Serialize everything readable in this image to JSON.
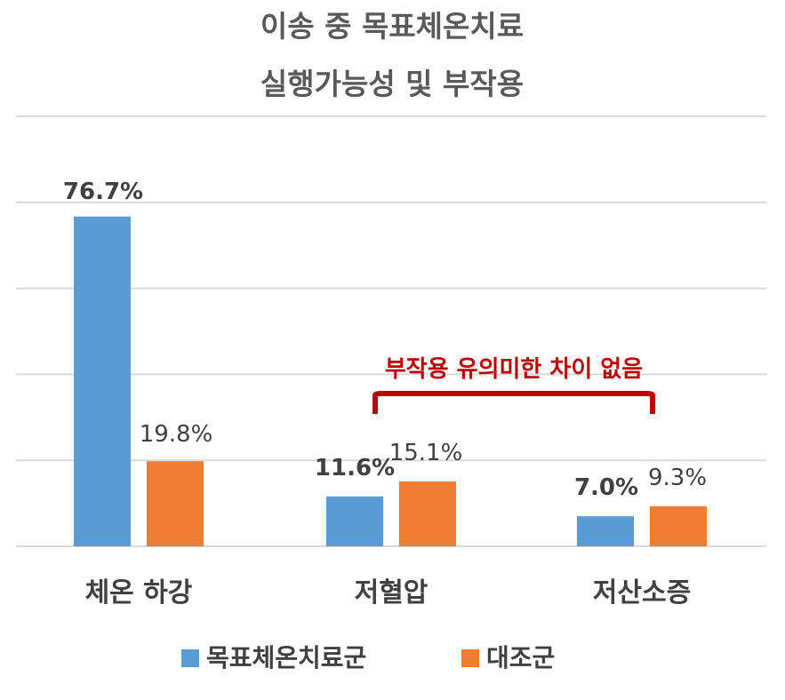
{
  "chart_data": {
    "type": "bar",
    "title": [
      "이송 중 목표체온치료",
      "실행가능성 및 부작용"
    ],
    "categories": [
      "체온 하강",
      "저혈압",
      "저산소증"
    ],
    "series": [
      {
        "name": "목표체온치료군",
        "color": "#5B9BD5",
        "values": [
          76.7,
          11.6,
          7.0
        ],
        "labels": [
          "76.7%",
          "11.6%",
          "7.0%"
        ],
        "label_bold": true
      },
      {
        "name": "대조군",
        "color": "#ED7D31",
        "values": [
          19.8,
          15.1,
          9.3
        ],
        "labels": [
          "19.8%",
          "15.1%",
          "9.3%"
        ],
        "label_bold": false
      }
    ],
    "ylim": [
      0,
      100
    ],
    "gridlines": true,
    "legend_position": "bottom",
    "annotation": {
      "text": "부작용 유의미한 차이 없음",
      "color": "#C00000",
      "spans_categories": [
        "저혈압",
        "저산소증"
      ]
    }
  }
}
